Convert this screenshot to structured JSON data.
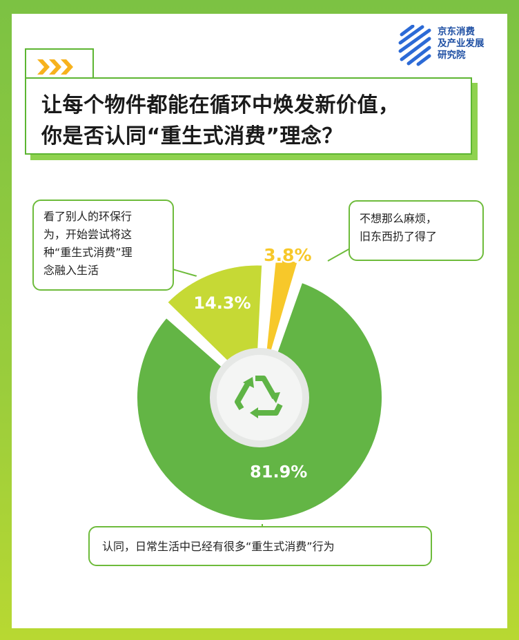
{
  "logo": {
    "lines": [
      "京东消费",
      "及产业发展",
      "研究院"
    ]
  },
  "title": {
    "line1": "让每个物件都能在循环中焕发新价值，",
    "line2": "你是否认同“重生式消费”理念？"
  },
  "callouts": {
    "a": [
      "看了别人的环保行",
      "为，开始尝试将这",
      "种“重生式消费”理",
      "念融入生活"
    ],
    "b": [
      "不想那么麻烦，",
      "旧东西扔了得了"
    ],
    "c": "认同，日常生活中已经有很多“重生式消费”行为"
  },
  "colors": {
    "background": "#7cc243",
    "accent_green": "#63b545",
    "lime": "#c6d935",
    "yellow": "#f7c82a",
    "title_border": "#5cb531"
  },
  "center_icon": "recycle-icon",
  "chart_data": {
    "type": "pie",
    "values": [
      81.9,
      14.3,
      3.8
    ],
    "labels": [
      "81.9%",
      "14.3%",
      "3.8%"
    ],
    "colors": [
      "#63b545",
      "#c6d935",
      "#f7c82a"
    ]
  }
}
